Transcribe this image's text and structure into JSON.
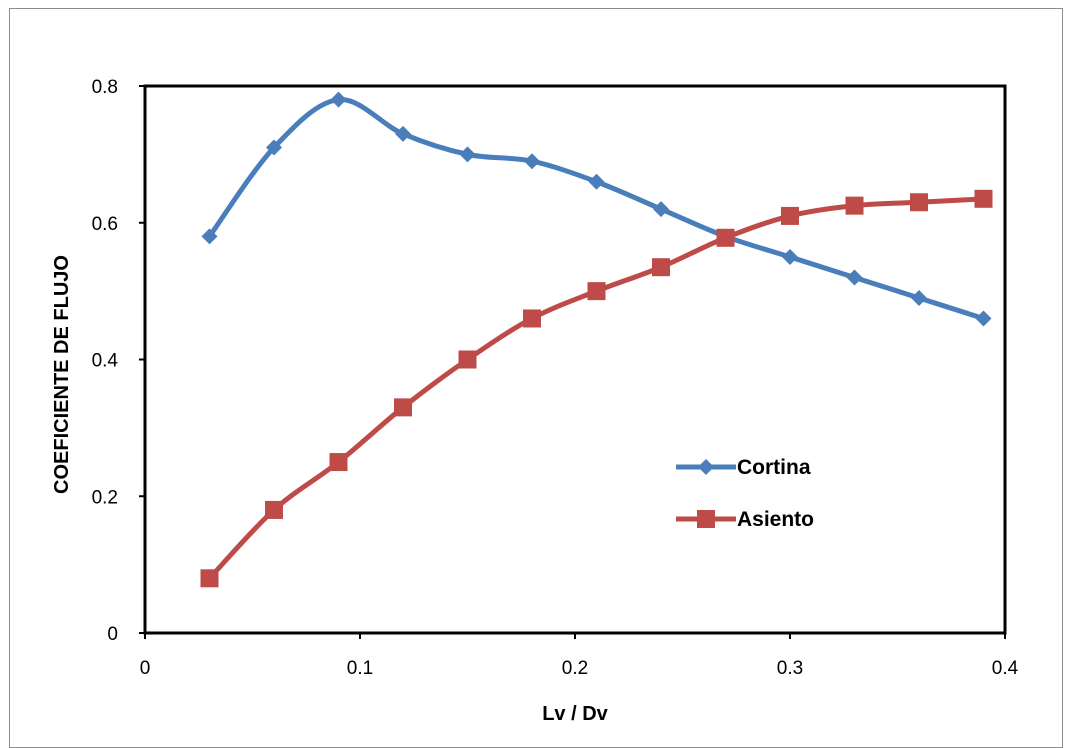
{
  "chart_data": {
    "type": "line",
    "title": "",
    "xlabel": "Lv / Dv",
    "ylabel": "COEFICIENTE DE FLUJO",
    "xlim": [
      0,
      0.4
    ],
    "ylim": [
      0,
      0.8
    ],
    "x_ticks": [
      "0",
      "0.1",
      "0.2",
      "0.3",
      "0.4"
    ],
    "y_ticks": [
      "0",
      "0.2",
      "0.4",
      "0.6",
      "0.8"
    ],
    "grid": false,
    "legend_position": "inside right",
    "smooth": true,
    "series": [
      {
        "name": "Cortina",
        "color": "#4a7ebb",
        "marker": "diamond",
        "x": [
          0.03,
          0.06,
          0.09,
          0.12,
          0.15,
          0.18,
          0.21,
          0.24,
          0.27,
          0.3,
          0.33,
          0.36,
          0.39
        ],
        "y": [
          0.58,
          0.71,
          0.78,
          0.73,
          0.7,
          0.69,
          0.66,
          0.62,
          0.58,
          0.55,
          0.52,
          0.49,
          0.46
        ]
      },
      {
        "name": "Asiento",
        "color": "#be4b48",
        "marker": "square",
        "x": [
          0.03,
          0.06,
          0.09,
          0.12,
          0.15,
          0.18,
          0.21,
          0.24,
          0.27,
          0.3,
          0.33,
          0.36,
          0.39
        ],
        "y": [
          0.08,
          0.18,
          0.25,
          0.33,
          0.4,
          0.46,
          0.5,
          0.535,
          0.578,
          0.61,
          0.625,
          0.63,
          0.635
        ]
      }
    ]
  }
}
